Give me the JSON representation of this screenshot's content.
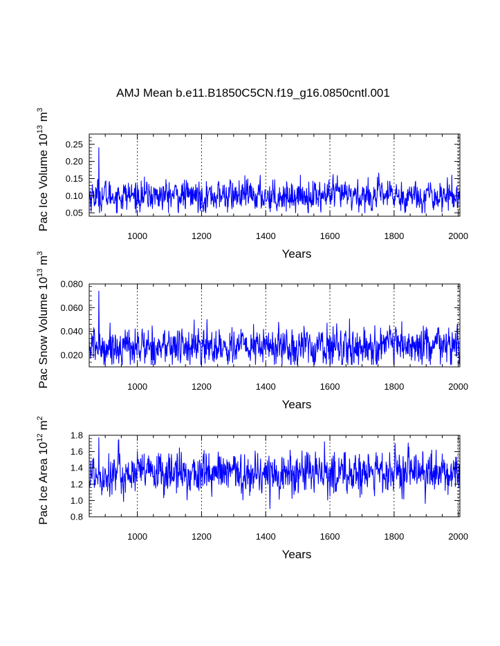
{
  "title": "AMJ Mean b.e11.B1850C5CN.f19_g16.0850cntl.001",
  "colors": {
    "series": "#0000ff",
    "axes": "#000000",
    "grid": "#000000"
  },
  "chart_data": [
    {
      "type": "line",
      "ylabel": "Pac Ice Volume 10",
      "ylabel_sup": "13",
      "ylabel_unit": " m",
      "ylabel_unit_sup": "3",
      "xlabel": "Years",
      "xlim": [
        850,
        2005
      ],
      "ylim": [
        0.04,
        0.28
      ],
      "x_ticks": [
        "1000",
        "1200",
        "1400",
        "1600",
        "1800",
        "2000"
      ],
      "y_ticks": [
        "0.05",
        "0.10",
        "0.15",
        "0.20",
        "0.25"
      ],
      "series": [
        {
          "name": "Pac Ice Volume",
          "x_start": 850,
          "x_end": 2005,
          "mean": 0.1,
          "std": 0.022,
          "min": 0.05,
          "max": 0.24
        }
      ]
    },
    {
      "type": "line",
      "ylabel": "Pac Snow Volume 10",
      "ylabel_sup": "13",
      "ylabel_unit": " m",
      "ylabel_unit_sup": "3",
      "xlabel": "Years",
      "xlim": [
        850,
        2005
      ],
      "ylim": [
        0.01,
        0.08
      ],
      "x_ticks": [
        "1000",
        "1200",
        "1400",
        "1600",
        "1800",
        "2000"
      ],
      "y_ticks": [
        "0.020",
        "0.040",
        "0.060",
        "0.080"
      ],
      "series": [
        {
          "name": "Pac Snow Volume",
          "x_start": 850,
          "x_end": 2005,
          "mean": 0.027,
          "std": 0.008,
          "min": 0.012,
          "max": 0.074
        }
      ]
    },
    {
      "type": "line",
      "ylabel": "Pac Ice Area 10",
      "ylabel_sup": "12",
      "ylabel_unit": " m",
      "ylabel_unit_sup": "2",
      "xlabel": "Years",
      "xlim": [
        850,
        2005
      ],
      "ylim": [
        0.8,
        1.8
      ],
      "x_ticks": [
        "1000",
        "1200",
        "1400",
        "1600",
        "1800",
        "2000"
      ],
      "y_ticks": [
        "0.8",
        "1.0",
        "1.2",
        "1.4",
        "1.6",
        "1.8"
      ],
      "series": [
        {
          "name": "Pac Ice Area",
          "x_start": 850,
          "x_end": 2005,
          "mean": 1.33,
          "std": 0.13,
          "min": 0.9,
          "max": 1.77
        }
      ]
    }
  ]
}
